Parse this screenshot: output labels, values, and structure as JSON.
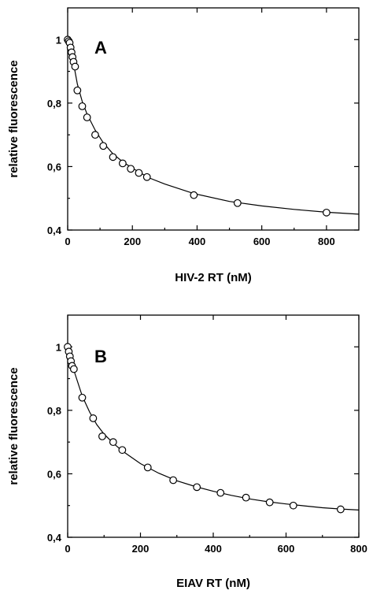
{
  "chart_data": [
    {
      "type": "scatter",
      "panel_label": "A",
      "xlabel": "HIV-2 RT (nM)",
      "ylabel": "relative fluorescence",
      "xlim": [
        0,
        900
      ],
      "ylim": [
        0.4,
        1.1
      ],
      "xticks": [
        0,
        200,
        400,
        600,
        800
      ],
      "xtick_labels": [
        "0",
        "200",
        "400",
        "600",
        "800"
      ],
      "yticks": [
        0.4,
        0.6,
        0.8,
        1.0
      ],
      "ytick_labels": [
        "0,4",
        "0,6",
        "0,8",
        "1"
      ],
      "grid": false,
      "points": [
        {
          "x": 0,
          "y": 1.0
        },
        {
          "x": 3,
          "y": 0.995
        },
        {
          "x": 6,
          "y": 0.99
        },
        {
          "x": 9,
          "y": 0.975
        },
        {
          "x": 12,
          "y": 0.96
        },
        {
          "x": 15,
          "y": 0.945
        },
        {
          "x": 18,
          "y": 0.93
        },
        {
          "x": 23,
          "y": 0.915
        },
        {
          "x": 30,
          "y": 0.84
        },
        {
          "x": 45,
          "y": 0.79
        },
        {
          "x": 60,
          "y": 0.755
        },
        {
          "x": 85,
          "y": 0.7
        },
        {
          "x": 110,
          "y": 0.665
        },
        {
          "x": 140,
          "y": 0.63
        },
        {
          "x": 170,
          "y": 0.61
        },
        {
          "x": 195,
          "y": 0.593
        },
        {
          "x": 220,
          "y": 0.58
        },
        {
          "x": 245,
          "y": 0.567
        },
        {
          "x": 390,
          "y": 0.51
        },
        {
          "x": 525,
          "y": 0.485
        },
        {
          "x": 800,
          "y": 0.455
        }
      ],
      "fit_curve": [
        {
          "x": 0,
          "y": 1.0
        },
        {
          "x": 10,
          "y": 0.96
        },
        {
          "x": 20,
          "y": 0.915
        },
        {
          "x": 30,
          "y": 0.86
        },
        {
          "x": 45,
          "y": 0.805
        },
        {
          "x": 60,
          "y": 0.765
        },
        {
          "x": 85,
          "y": 0.715
        },
        {
          "x": 110,
          "y": 0.675
        },
        {
          "x": 140,
          "y": 0.64
        },
        {
          "x": 170,
          "y": 0.615
        },
        {
          "x": 200,
          "y": 0.595
        },
        {
          "x": 250,
          "y": 0.565
        },
        {
          "x": 300,
          "y": 0.545
        },
        {
          "x": 390,
          "y": 0.515
        },
        {
          "x": 500,
          "y": 0.49
        },
        {
          "x": 600,
          "y": 0.476
        },
        {
          "x": 700,
          "y": 0.465
        },
        {
          "x": 800,
          "y": 0.456
        },
        {
          "x": 900,
          "y": 0.45
        }
      ]
    },
    {
      "type": "scatter",
      "panel_label": "B",
      "xlabel": "EIAV RT (nM)",
      "ylabel": "relative fluorescence",
      "xlim": [
        0,
        800
      ],
      "ylim": [
        0.4,
        1.1
      ],
      "xticks": [
        0,
        200,
        400,
        600,
        800
      ],
      "xtick_labels": [
        "0",
        "200",
        "400",
        "600",
        "800"
      ],
      "yticks": [
        0.4,
        0.6,
        0.8,
        1.0
      ],
      "ytick_labels": [
        "0,4",
        "0,6",
        "0,8",
        "1"
      ],
      "grid": false,
      "points": [
        {
          "x": 0,
          "y": 1.0
        },
        {
          "x": 3,
          "y": 0.985
        },
        {
          "x": 6,
          "y": 0.97
        },
        {
          "x": 9,
          "y": 0.955
        },
        {
          "x": 12,
          "y": 0.94
        },
        {
          "x": 17,
          "y": 0.93
        },
        {
          "x": 40,
          "y": 0.84
        },
        {
          "x": 70,
          "y": 0.775
        },
        {
          "x": 95,
          "y": 0.718
        },
        {
          "x": 125,
          "y": 0.7
        },
        {
          "x": 150,
          "y": 0.675
        },
        {
          "x": 220,
          "y": 0.62
        },
        {
          "x": 290,
          "y": 0.58
        },
        {
          "x": 355,
          "y": 0.558
        },
        {
          "x": 420,
          "y": 0.54
        },
        {
          "x": 490,
          "y": 0.525
        },
        {
          "x": 555,
          "y": 0.51
        },
        {
          "x": 620,
          "y": 0.5
        },
        {
          "x": 750,
          "y": 0.488
        }
      ],
      "fit_curve": [
        {
          "x": 0,
          "y": 1.0
        },
        {
          "x": 10,
          "y": 0.955
        },
        {
          "x": 20,
          "y": 0.915
        },
        {
          "x": 40,
          "y": 0.845
        },
        {
          "x": 60,
          "y": 0.795
        },
        {
          "x": 80,
          "y": 0.755
        },
        {
          "x": 100,
          "y": 0.725
        },
        {
          "x": 125,
          "y": 0.697
        },
        {
          "x": 150,
          "y": 0.672
        },
        {
          "x": 200,
          "y": 0.632
        },
        {
          "x": 250,
          "y": 0.602
        },
        {
          "x": 300,
          "y": 0.578
        },
        {
          "x": 350,
          "y": 0.56
        },
        {
          "x": 400,
          "y": 0.545
        },
        {
          "x": 450,
          "y": 0.532
        },
        {
          "x": 500,
          "y": 0.521
        },
        {
          "x": 550,
          "y": 0.512
        },
        {
          "x": 600,
          "y": 0.505
        },
        {
          "x": 650,
          "y": 0.499
        },
        {
          "x": 700,
          "y": 0.493
        },
        {
          "x": 750,
          "y": 0.489
        },
        {
          "x": 800,
          "y": 0.486
        }
      ]
    }
  ]
}
